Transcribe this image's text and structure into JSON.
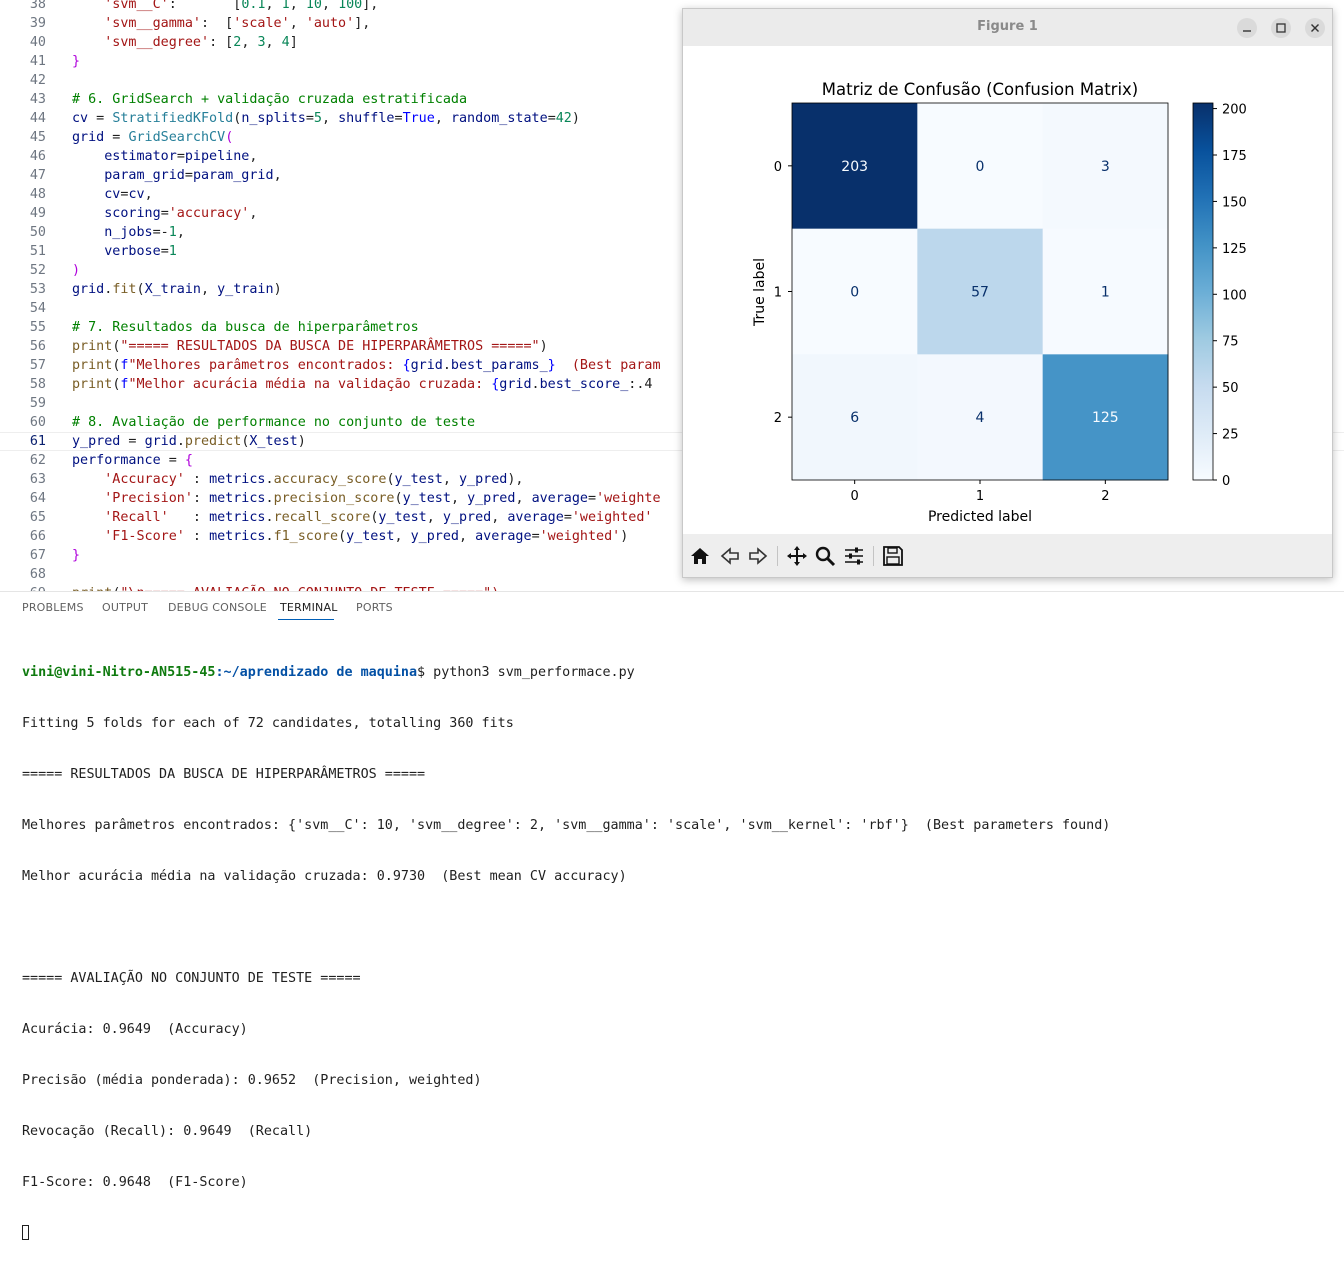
{
  "editor": {
    "current_line": "61",
    "lines": [
      {
        "n": "38",
        "html": "    <span class=\"tk-s\">'svm__C'</span>:       [<span class=\"tk-n\">0.1</span>, <span class=\"tk-n\">1</span>, <span class=\"tk-n\">10</span>, <span class=\"tk-n\">100</span>],"
      },
      {
        "n": "39",
        "html": "    <span class=\"tk-s\">'svm__gamma'</span>:  [<span class=\"tk-s\">'scale'</span>, <span class=\"tk-s\">'auto'</span>],"
      },
      {
        "n": "40",
        "html": "    <span class=\"tk-s\">'svm__degree'</span>: [<span class=\"tk-n\">2</span>, <span class=\"tk-n\">3</span>, <span class=\"tk-n\">4</span>]"
      },
      {
        "n": "41",
        "html": "<span class=\"tk-p\">}</span>"
      },
      {
        "n": "42",
        "html": ""
      },
      {
        "n": "43",
        "html": "<span class=\"tk-c\"># 6. GridSearch + validação cruzada estratificada</span>"
      },
      {
        "n": "44",
        "html": "<span class=\"tk-v\">cv</span> = <span class=\"tk-t\">StratifiedKFold</span>(<span class=\"tk-v\">n_splits</span>=<span class=\"tk-n\">5</span>, <span class=\"tk-v\">shuffle</span>=<span class=\"tk-k\">True</span>, <span class=\"tk-v\">random_state</span>=<span class=\"tk-n\">42</span>)"
      },
      {
        "n": "45",
        "html": "<span class=\"tk-v\">grid</span> = <span class=\"tk-t\">GridSearchCV</span><span class=\"tk-p\">(</span>"
      },
      {
        "n": "46",
        "html": "    <span class=\"tk-v\">estimator</span>=<span class=\"tk-v\">pipeline</span>,"
      },
      {
        "n": "47",
        "html": "    <span class=\"tk-v\">param_grid</span>=<span class=\"tk-v\">param_grid</span>,"
      },
      {
        "n": "48",
        "html": "    <span class=\"tk-v\">cv</span>=<span class=\"tk-v\">cv</span>,"
      },
      {
        "n": "49",
        "html": "    <span class=\"tk-v\">scoring</span>=<span class=\"tk-s\">'accuracy'</span>,"
      },
      {
        "n": "50",
        "html": "    <span class=\"tk-v\">n_jobs</span>=-<span class=\"tk-n\">1</span>,"
      },
      {
        "n": "51",
        "html": "    <span class=\"tk-v\">verbose</span>=<span class=\"tk-n\">1</span>"
      },
      {
        "n": "52",
        "html": "<span class=\"tk-p\">)</span>"
      },
      {
        "n": "53",
        "html": "<span class=\"tk-v\">grid</span>.<span class=\"tk-f\">fit</span>(<span class=\"tk-v\">X_train</span>, <span class=\"tk-v\">y_train</span>)"
      },
      {
        "n": "54",
        "html": ""
      },
      {
        "n": "55",
        "html": "<span class=\"tk-c\"># 7. Resultados da busca de hiperparâmetros</span>"
      },
      {
        "n": "56",
        "html": "<span class=\"tk-f\">print</span>(<span class=\"tk-s\">\"===== RESULTADOS DA BUSCA DE HIPERPARÂMETROS =====\"</span>)"
      },
      {
        "n": "57",
        "html": "<span class=\"tk-f\">print</span>(<span class=\"tk-k\">f</span><span class=\"tk-s\">\"Melhores parâmetros encontrados: </span><span class=\"tk-k\">{</span><span class=\"tk-v\">grid</span>.<span class=\"tk-v\">best_params_</span><span class=\"tk-k\">}</span><span class=\"tk-s\">  (Best param</span>"
      },
      {
        "n": "58",
        "html": "<span class=\"tk-f\">print</span>(<span class=\"tk-k\">f</span><span class=\"tk-s\">\"Melhor acurácia média na validação cruzada: </span><span class=\"tk-k\">{</span><span class=\"tk-v\">grid</span>.<span class=\"tk-v\">best_score_</span>:.4"
      },
      {
        "n": "59",
        "html": ""
      },
      {
        "n": "60",
        "html": "<span class=\"tk-c\"># 8. Avaliação de performance no conjunto de teste</span>"
      },
      {
        "n": "61",
        "html": "<span class=\"tk-v\">y_pred</span> = <span class=\"tk-v\">grid</span>.<span class=\"tk-f\">predict</span>(<span class=\"tk-v\">X_test</span>)"
      },
      {
        "n": "62",
        "html": "<span class=\"tk-v\">performance</span> = <span class=\"tk-p\">{</span>"
      },
      {
        "n": "63",
        "html": "    <span class=\"tk-s\">'Accuracy'</span> : <span class=\"tk-v\">metrics</span>.<span class=\"tk-f\">accuracy_score</span>(<span class=\"tk-v\">y_test</span>, <span class=\"tk-v\">y_pred</span>),"
      },
      {
        "n": "64",
        "html": "    <span class=\"tk-s\">'Precision'</span>: <span class=\"tk-v\">metrics</span>.<span class=\"tk-f\">precision_score</span>(<span class=\"tk-v\">y_test</span>, <span class=\"tk-v\">y_pred</span>, <span class=\"tk-v\">average</span>=<span class=\"tk-s\">'weighte</span>"
      },
      {
        "n": "65",
        "html": "    <span class=\"tk-s\">'Recall'</span>   : <span class=\"tk-v\">metrics</span>.<span class=\"tk-f\">recall_score</span>(<span class=\"tk-v\">y_test</span>, <span class=\"tk-v\">y_pred</span>, <span class=\"tk-v\">average</span>=<span class=\"tk-s\">'weighted'</span>"
      },
      {
        "n": "66",
        "html": "    <span class=\"tk-s\">'F1-Score'</span> : <span class=\"tk-v\">metrics</span>.<span class=\"tk-f\">f1_score</span>(<span class=\"tk-v\">y_test</span>, <span class=\"tk-v\">y_pred</span>, <span class=\"tk-v\">average</span>=<span class=\"tk-s\">'weighted'</span>)"
      },
      {
        "n": "67",
        "html": "<span class=\"tk-p\">}</span>"
      },
      {
        "n": "68",
        "html": ""
      },
      {
        "n": "69",
        "html": "<span class=\"tk-f\">print</span>(<span class=\"tk-s\">\"\\n===== AVALIAÇÃO NO CONJUNTO DE TESTE =====\")</span>"
      }
    ]
  },
  "panel": {
    "tabs": [
      {
        "label": "PROBLEMS",
        "active": false
      },
      {
        "label": "OUTPUT",
        "active": false
      },
      {
        "label": "DEBUG CONSOLE",
        "active": false
      },
      {
        "label": "TERMINAL",
        "active": true
      },
      {
        "label": "PORTS",
        "active": false
      }
    ],
    "terminal": {
      "prompt_user": "vini@vini-Nitro-AN515-45",
      "prompt_sep": ":",
      "prompt_path": "~/aprendizado de maquina",
      "prompt_symbol": "$",
      "command": " python3 svm_performace.py",
      "output": [
        "Fitting 5 folds for each of 72 candidates, totalling 360 fits",
        "===== RESULTADOS DA BUSCA DE HIPERPARÂMETROS =====",
        "Melhores parâmetros encontrados: {'svm__C': 10, 'svm__degree': 2, 'svm__gamma': 'scale', 'svm__kernel': 'rbf'}  (Best parameters found)",
        "Melhor acurácia média na validação cruzada: 0.9730  (Best mean CV accuracy)",
        "",
        "===== AVALIAÇÃO NO CONJUNTO DE TESTE =====",
        "Acurácia: 0.9649  (Accuracy)",
        "Precisão (média ponderada): 0.9652  (Precision, weighted)",
        "Revocação (Recall): 0.9649  (Recall)",
        "F1-Score: 0.9648  (F1-Score)"
      ]
    }
  },
  "figure_window": {
    "title": "Figure 1",
    "controls": [
      "minimize-icon",
      "maximize-icon",
      "close-icon"
    ],
    "toolbar_icons": [
      "home-icon",
      "back-arrow-icon",
      "forward-arrow-icon",
      "pan-move-icon",
      "zoom-magnifier-icon",
      "configure-subplots-icon",
      "save-floppy-icon"
    ]
  },
  "chart_data": {
    "type": "heatmap",
    "title": "Matriz de Confusão  (Confusion Matrix)",
    "xlabel": "Predicted label",
    "ylabel": "True label",
    "x_categories": [
      "0",
      "1",
      "2"
    ],
    "y_categories": [
      "0",
      "1",
      "2"
    ],
    "values": [
      [
        203,
        0,
        3
      ],
      [
        0,
        57,
        1
      ],
      [
        6,
        4,
        125
      ]
    ],
    "colormap": "Blues",
    "vmin": 0,
    "vmax": 203,
    "colorbar_ticks": [
      "0",
      "25",
      "50",
      "75",
      "100",
      "125",
      "150",
      "175",
      "200"
    ],
    "colors": {
      "low": "#f7fbff",
      "high": "#08306b",
      "text_dark": "#08306b",
      "text_light": "#f7fbff"
    }
  }
}
